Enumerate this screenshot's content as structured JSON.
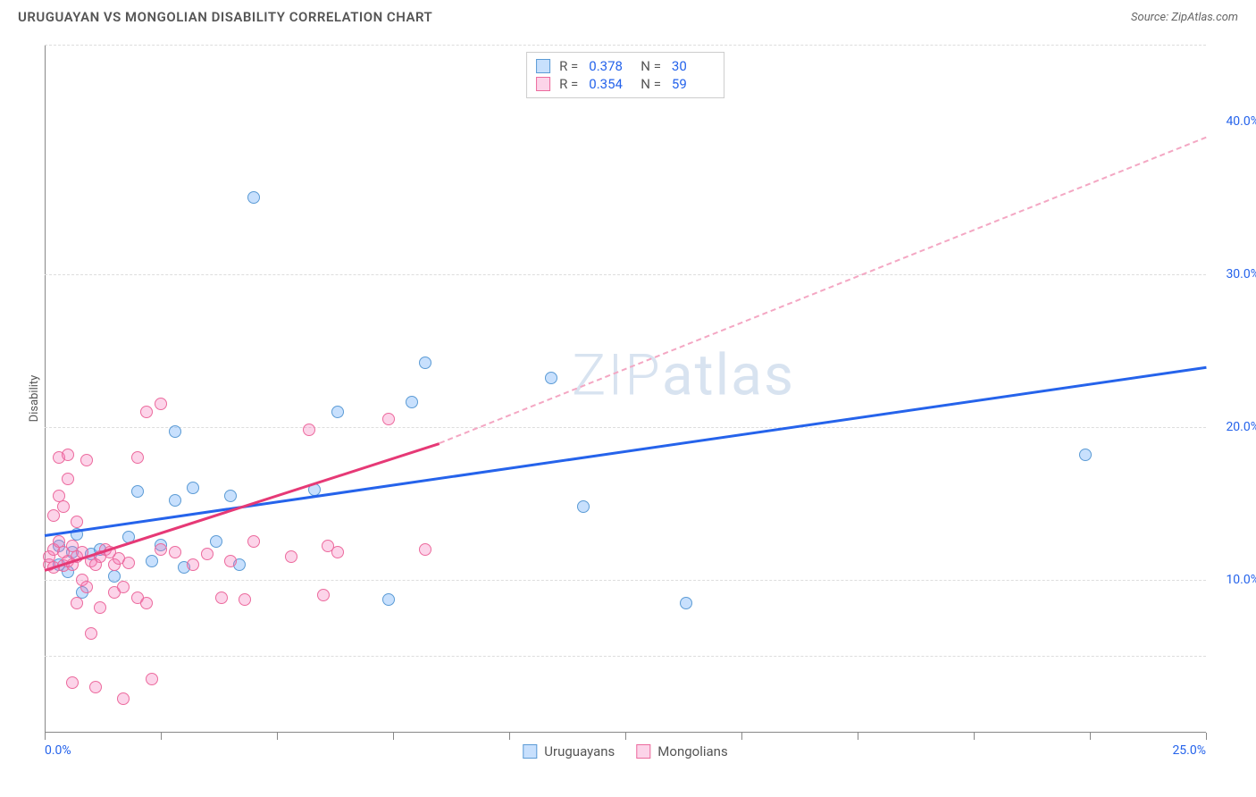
{
  "header": {
    "title": "URUGUAYAN VS MONGOLIAN DISABILITY CORRELATION CHART",
    "source": "Source: ZipAtlas.com"
  },
  "chart": {
    "type": "scatter",
    "y_label": "Disability",
    "xlim": [
      0,
      25
    ],
    "ylim": [
      0,
      45
    ],
    "background_color": "#ffffff",
    "grid_color": "#dddddd",
    "axis_color": "#888888",
    "y_ticks": [
      {
        "value": 10,
        "label": "10.0%"
      },
      {
        "value": 20,
        "label": "20.0%"
      },
      {
        "value": 30,
        "label": "30.0%"
      },
      {
        "value": 40,
        "label": "40.0%"
      }
    ],
    "gridlines_y": [
      5,
      10,
      20,
      30,
      45
    ],
    "x_ticks_minor": [
      0,
      2.5,
      5,
      7.5,
      10,
      12.5,
      15,
      17.5,
      20,
      22.5,
      25
    ],
    "x_tick_labels": [
      {
        "value": 0,
        "label": "0.0%",
        "align": "left"
      },
      {
        "value": 25,
        "label": "25.0%",
        "align": "right"
      }
    ],
    "watermark": "ZIPatlas",
    "series": [
      {
        "name": "Uruguayans",
        "color_fill": "rgba(96,165,250,0.35)",
        "color_stroke": "#5b9bd5",
        "marker_size": 14,
        "regression": {
          "x1": 0,
          "y1": 13.0,
          "x2": 25,
          "y2": 24.0,
          "color": "#2563eb",
          "width": 3,
          "dashed": false,
          "extrap_x2": 25
        },
        "R": "0.378",
        "N": "30",
        "points": [
          [
            0.3,
            12.2
          ],
          [
            0.3,
            11.0
          ],
          [
            0.5,
            10.5
          ],
          [
            0.6,
            11.8
          ],
          [
            0.7,
            13.0
          ],
          [
            0.8,
            9.2
          ],
          [
            1.0,
            11.7
          ],
          [
            1.2,
            12.0
          ],
          [
            1.5,
            10.2
          ],
          [
            1.8,
            12.8
          ],
          [
            2.0,
            15.8
          ],
          [
            2.3,
            11.2
          ],
          [
            2.5,
            12.3
          ],
          [
            2.8,
            15.2
          ],
          [
            3.0,
            10.8
          ],
          [
            3.2,
            16.0
          ],
          [
            3.7,
            12.5
          ],
          [
            4.0,
            15.5
          ],
          [
            4.2,
            11.0
          ],
          [
            2.8,
            19.7
          ],
          [
            5.8,
            15.9
          ],
          [
            4.5,
            35.0
          ],
          [
            6.3,
            21.0
          ],
          [
            7.4,
            8.7
          ],
          [
            7.9,
            21.6
          ],
          [
            8.2,
            24.2
          ],
          [
            10.9,
            23.2
          ],
          [
            11.6,
            14.8
          ],
          [
            13.8,
            8.5
          ],
          [
            22.4,
            18.2
          ]
        ]
      },
      {
        "name": "Mongolians",
        "color_fill": "rgba(244,114,182,0.30)",
        "color_stroke": "#ec6a9d",
        "marker_size": 14,
        "regression": {
          "x1": 0,
          "y1": 10.7,
          "x2": 8.5,
          "y2": 19.0,
          "color": "#e63976",
          "width": 3,
          "dashed": false
        },
        "regression_extrap": {
          "x1": 8.5,
          "y1": 19.0,
          "x2": 25,
          "y2": 39.0,
          "color": "#f4a7c3",
          "dashed": true
        },
        "R": "0.354",
        "N": "59",
        "points": [
          [
            0.1,
            11.0
          ],
          [
            0.1,
            11.5
          ],
          [
            0.2,
            10.8
          ],
          [
            0.2,
            12.0
          ],
          [
            0.2,
            14.2
          ],
          [
            0.3,
            12.5
          ],
          [
            0.3,
            15.5
          ],
          [
            0.3,
            18.0
          ],
          [
            0.4,
            10.9
          ],
          [
            0.4,
            11.8
          ],
          [
            0.4,
            14.8
          ],
          [
            0.5,
            11.2
          ],
          [
            0.5,
            16.6
          ],
          [
            0.5,
            18.2
          ],
          [
            0.6,
            11.0
          ],
          [
            0.6,
            12.2
          ],
          [
            0.7,
            8.5
          ],
          [
            0.7,
            11.5
          ],
          [
            0.7,
            13.8
          ],
          [
            0.8,
            10.0
          ],
          [
            0.8,
            11.8
          ],
          [
            0.9,
            9.5
          ],
          [
            0.9,
            17.8
          ],
          [
            1.0,
            6.5
          ],
          [
            1.0,
            11.2
          ],
          [
            1.1,
            11.0
          ],
          [
            1.2,
            8.2
          ],
          [
            1.2,
            11.5
          ],
          [
            1.3,
            12.0
          ],
          [
            1.4,
            11.8
          ],
          [
            1.5,
            9.2
          ],
          [
            1.5,
            11.0
          ],
          [
            1.6,
            11.4
          ],
          [
            1.7,
            9.5
          ],
          [
            1.8,
            11.1
          ],
          [
            2.0,
            8.8
          ],
          [
            2.0,
            18.0
          ],
          [
            2.2,
            8.5
          ],
          [
            2.2,
            21.0
          ],
          [
            2.3,
            3.5
          ],
          [
            2.5,
            12.0
          ],
          [
            2.5,
            21.5
          ],
          [
            2.8,
            11.8
          ],
          [
            1.1,
            3.0
          ],
          [
            0.6,
            3.3
          ],
          [
            1.7,
            2.2
          ],
          [
            3.2,
            11.0
          ],
          [
            3.5,
            11.7
          ],
          [
            3.8,
            8.8
          ],
          [
            4.0,
            11.2
          ],
          [
            4.3,
            8.7
          ],
          [
            4.5,
            12.5
          ],
          [
            5.3,
            11.5
          ],
          [
            5.7,
            19.8
          ],
          [
            6.0,
            9.0
          ],
          [
            6.1,
            12.2
          ],
          [
            6.3,
            11.8
          ],
          [
            7.4,
            20.5
          ],
          [
            8.2,
            12.0
          ]
        ]
      }
    ],
    "stats_box": {
      "rows": [
        {
          "swatch_fill": "rgba(96,165,250,0.35)",
          "swatch_stroke": "#5b9bd5",
          "R": "0.378",
          "N": "30"
        },
        {
          "swatch_fill": "rgba(244,114,182,0.30)",
          "swatch_stroke": "#ec6a9d",
          "R": "0.354",
          "N": "59"
        }
      ],
      "labels": {
        "R": "R =",
        "N": "N ="
      }
    },
    "bottom_legend": [
      {
        "swatch_fill": "rgba(96,165,250,0.35)",
        "swatch_stroke": "#5b9bd5",
        "label": "Uruguayans"
      },
      {
        "swatch_fill": "rgba(244,114,182,0.30)",
        "swatch_stroke": "#ec6a9d",
        "label": "Mongolians"
      }
    ]
  }
}
